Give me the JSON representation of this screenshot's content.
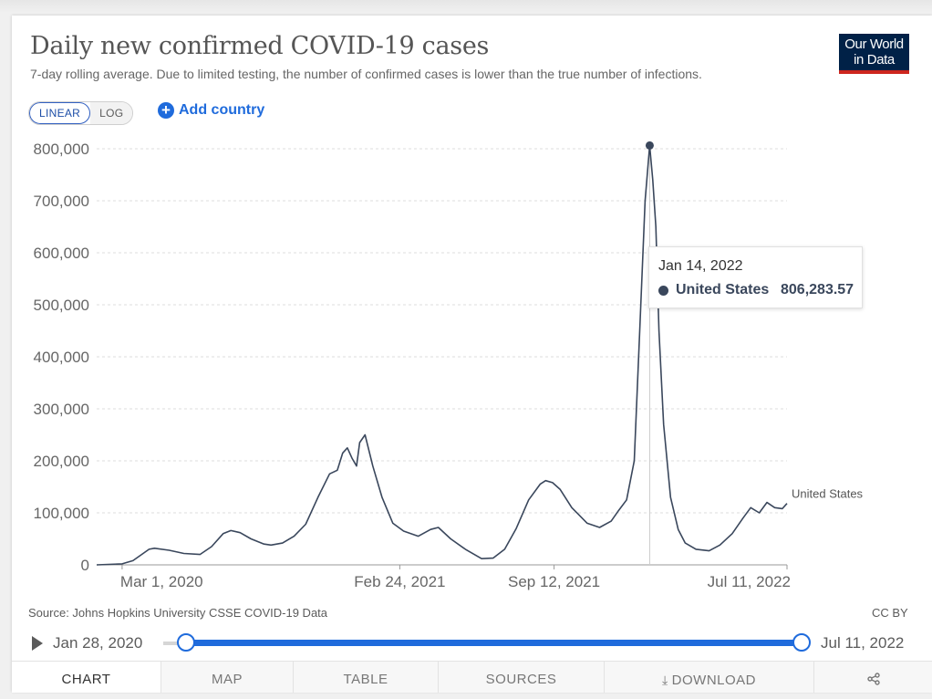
{
  "header": {
    "title": "Daily new confirmed COVID-19 cases",
    "subtitle": "7-day rolling average. Due to limited testing, the number of confirmed cases is lower than the true number of infections.",
    "logo_line1": "Our World",
    "logo_line2": "in Data"
  },
  "controls": {
    "scale_linear": "LINEAR",
    "scale_log": "LOG",
    "active_scale": "LINEAR",
    "add_country": "Add country"
  },
  "tooltip": {
    "date": "Jan 14, 2022",
    "series": "United States",
    "value": "806,283.57"
  },
  "footer": {
    "source": "Source: Johns Hopkins University CSSE COVID-19 Data",
    "license": "CC BY"
  },
  "timeline": {
    "start_date": "Jan 28, 2020",
    "end_date": "Jul 11, 2022",
    "start_fraction": 0.0,
    "end_fraction": 1.0
  },
  "tabs": [
    {
      "label": "CHART",
      "active": true
    },
    {
      "label": "MAP",
      "active": false
    },
    {
      "label": "TABLE",
      "active": false
    },
    {
      "label": "SOURCES",
      "active": false
    },
    {
      "label": "DOWNLOAD",
      "active": false
    },
    {
      "label": "",
      "icon": "share-icon",
      "active": false
    }
  ],
  "colors": {
    "series": "#3a475c",
    "accent": "#1f6bdc",
    "logo_bg": "#002147",
    "logo_bar": "#ce261e"
  },
  "chart_data": {
    "type": "line",
    "title": "Daily new confirmed COVID-19 cases",
    "ylim": [
      0,
      800000
    ],
    "y_ticks": [
      0,
      100000,
      200000,
      300000,
      400000,
      500000,
      600000,
      700000,
      800000
    ],
    "y_tick_labels": [
      "0",
      "100,000",
      "200,000",
      "300,000",
      "400,000",
      "500,000",
      "600,000",
      "700,000",
      "800,000"
    ],
    "x_ticks": [
      "2020-03-01",
      "2021-02-24",
      "2021-09-12",
      "2022-07-11"
    ],
    "x_tick_labels": [
      "Mar 1, 2020",
      "Feb 24, 2021",
      "Sep 12, 2021",
      "Jul 11, 2022"
    ],
    "xlim": [
      "2020-01-28",
      "2022-07-11"
    ],
    "grid": true,
    "highlight": {
      "x": "2022-01-14",
      "y": 806284
    },
    "series": [
      {
        "name": "United States",
        "color": "#3a475c",
        "x": [
          "2020-01-28",
          "2020-03-01",
          "2020-03-15",
          "2020-04-05",
          "2020-04-12",
          "2020-05-01",
          "2020-05-20",
          "2020-06-10",
          "2020-06-25",
          "2020-07-10",
          "2020-07-20",
          "2020-08-01",
          "2020-08-15",
          "2020-09-01",
          "2020-09-10",
          "2020-09-25",
          "2020-10-10",
          "2020-10-25",
          "2020-11-10",
          "2020-11-25",
          "2020-12-05",
          "2020-12-12",
          "2020-12-18",
          "2020-12-24",
          "2020-12-30",
          "2021-01-03",
          "2021-01-10",
          "2021-01-20",
          "2021-02-01",
          "2021-02-15",
          "2021-03-01",
          "2021-03-20",
          "2021-04-05",
          "2021-04-15",
          "2021-05-01",
          "2021-05-20",
          "2021-06-10",
          "2021-06-25",
          "2021-07-10",
          "2021-07-25",
          "2021-08-10",
          "2021-08-25",
          "2021-09-01",
          "2021-09-10",
          "2021-09-20",
          "2021-10-05",
          "2021-10-25",
          "2021-11-10",
          "2021-11-25",
          "2021-12-05",
          "2021-12-15",
          "2021-12-25",
          "2022-01-01",
          "2022-01-08",
          "2022-01-14",
          "2022-01-18",
          "2022-01-22",
          "2022-01-26",
          "2022-02-01",
          "2022-02-10",
          "2022-02-20",
          "2022-03-01",
          "2022-03-15",
          "2022-04-01",
          "2022-04-15",
          "2022-05-01",
          "2022-05-15",
          "2022-05-25",
          "2022-06-05",
          "2022-06-15",
          "2022-06-25",
          "2022-07-05",
          "2022-07-11"
        ],
        "values": [
          0,
          2000,
          8000,
          30000,
          32000,
          28000,
          22000,
          20000,
          35000,
          60000,
          66000,
          62000,
          50000,
          40000,
          38000,
          42000,
          55000,
          78000,
          130000,
          175000,
          182000,
          215000,
          225000,
          205000,
          190000,
          235000,
          250000,
          190000,
          130000,
          80000,
          65000,
          55000,
          68000,
          72000,
          50000,
          30000,
          12000,
          13000,
          30000,
          70000,
          125000,
          155000,
          162000,
          158000,
          145000,
          110000,
          80000,
          72000,
          84000,
          105000,
          125000,
          200000,
          450000,
          700000,
          806284,
          740000,
          650000,
          450000,
          270000,
          130000,
          68000,
          42000,
          30000,
          27000,
          38000,
          60000,
          90000,
          110000,
          100000,
          120000,
          110000,
          108000,
          118000
        ]
      }
    ]
  }
}
